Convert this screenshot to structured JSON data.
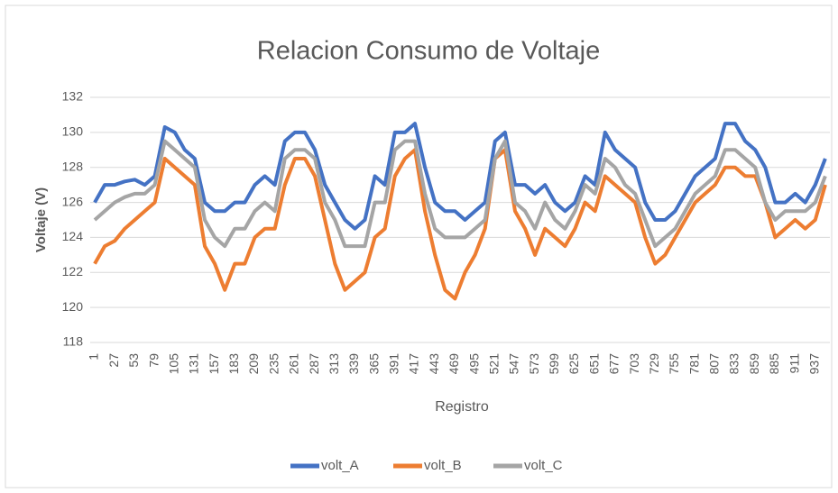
{
  "chart_data": {
    "type": "line",
    "title": "Relacion Consumo de Voltaje",
    "x_label": "Registro",
    "y_label": "Voltaje (V)",
    "x": [
      1,
      14,
      27,
      40,
      53,
      66,
      79,
      92,
      105,
      118,
      131,
      144,
      157,
      170,
      183,
      196,
      209,
      222,
      235,
      248,
      261,
      274,
      287,
      300,
      313,
      326,
      339,
      352,
      365,
      378,
      391,
      404,
      417,
      430,
      443,
      456,
      469,
      482,
      495,
      508,
      521,
      534,
      547,
      560,
      573,
      586,
      599,
      612,
      625,
      638,
      651,
      664,
      677,
      690,
      703,
      716,
      729,
      742,
      755,
      768,
      781,
      794,
      807,
      820,
      833,
      846,
      859,
      872,
      885,
      898,
      911,
      924,
      937,
      950
    ],
    "series": [
      {
        "name": "volt_A",
        "color": "#4472c4",
        "values": [
          126,
          127,
          127,
          127.2,
          127.3,
          127,
          127.5,
          130.3,
          130,
          129,
          128.5,
          126,
          125.5,
          125.5,
          126,
          126,
          127,
          127.5,
          127,
          129.5,
          130,
          130,
          129,
          127,
          126,
          125,
          124.5,
          125,
          127.5,
          127,
          130,
          130,
          130.5,
          128,
          126,
          125.5,
          125.5,
          125,
          125.5,
          126,
          129.5,
          130,
          127,
          127,
          126.5,
          127,
          126,
          125.5,
          126,
          127.5,
          127,
          130,
          129,
          128.5,
          128,
          126,
          125,
          125,
          125.5,
          126.5,
          127.5,
          128,
          128.5,
          130.5,
          130.5,
          129.5,
          129,
          128,
          126,
          126,
          126.5,
          126,
          127,
          128.5
        ]
      },
      {
        "name": "volt_B",
        "color": "#ed7d31",
        "values": [
          122.5,
          123.5,
          123.8,
          124.5,
          125,
          125.5,
          126,
          128.5,
          128,
          127.5,
          127,
          123.5,
          122.5,
          121,
          122.5,
          122.5,
          124,
          124.5,
          124.5,
          127,
          128.5,
          128.5,
          127.5,
          125,
          122.5,
          121,
          121.5,
          122,
          124,
          124.5,
          127.5,
          128.5,
          129,
          125.5,
          123,
          121,
          120.5,
          122,
          123,
          124.5,
          128.5,
          129,
          125.5,
          124.5,
          123,
          124.5,
          124,
          123.5,
          124.5,
          126,
          125.5,
          127.5,
          127,
          126.5,
          126,
          124,
          122.5,
          123,
          124,
          125,
          126,
          126.5,
          127,
          128,
          128,
          127.5,
          127.5,
          126,
          124,
          124.5,
          125,
          124.5,
          125,
          127
        ]
      },
      {
        "name": "volt_C",
        "color": "#a5a5a5",
        "values": [
          125,
          125.5,
          126,
          126.3,
          126.5,
          126.5,
          127,
          129.5,
          129,
          128.5,
          128,
          125,
          124,
          123.5,
          124.5,
          124.5,
          125.5,
          126,
          125.5,
          128.5,
          129,
          129,
          128.5,
          126,
          125,
          123.5,
          123.5,
          123.5,
          126,
          126,
          129,
          129.5,
          129.5,
          126.5,
          124.5,
          124,
          124,
          124,
          124.5,
          125,
          128.5,
          129.5,
          126,
          125.5,
          124.5,
          126,
          125,
          124.5,
          125.5,
          127,
          126.5,
          128.5,
          128,
          127,
          126.5,
          125,
          123.5,
          124,
          124.5,
          125.5,
          126.5,
          127,
          127.5,
          129,
          129,
          128.5,
          128,
          126,
          125,
          125.5,
          125.5,
          125.5,
          126,
          127.5
        ]
      }
    ],
    "xlim": [
      1,
      956
    ],
    "xticks": [
      1,
      27,
      53,
      79,
      105,
      131,
      157,
      183,
      209,
      235,
      261,
      287,
      313,
      339,
      365,
      391,
      417,
      443,
      469,
      495,
      521,
      547,
      573,
      599,
      625,
      651,
      677,
      703,
      729,
      755,
      781,
      807,
      833,
      859,
      885,
      911,
      937
    ],
    "ylim": [
      118,
      132
    ],
    "yticks": [
      118,
      120,
      122,
      124,
      126,
      128,
      130,
      132
    ],
    "grid": true,
    "legend": "bottom"
  }
}
